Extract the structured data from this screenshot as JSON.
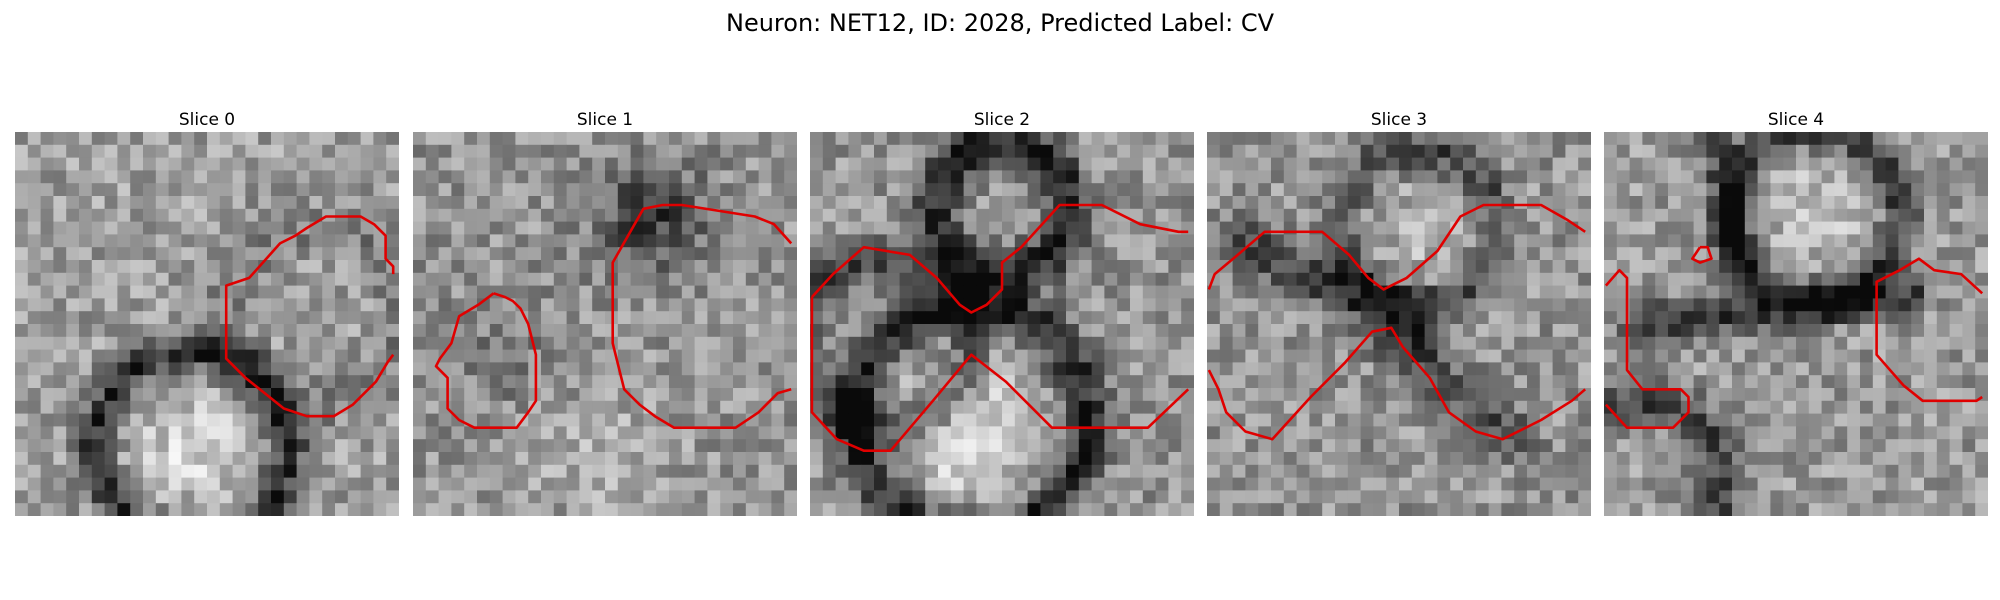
{
  "figure": {
    "title": "Neuron: NET12, ID: 2028, Predicted Label: CV"
  },
  "overlay_color": "#e00000",
  "slices": [
    {
      "title": "Slice 0",
      "contours": [
        [
          [
            0.985,
            0.37
          ],
          [
            0.985,
            0.35
          ],
          [
            0.965,
            0.33
          ],
          [
            0.965,
            0.27
          ],
          [
            0.935,
            0.24
          ],
          [
            0.9,
            0.22
          ],
          [
            0.86,
            0.22
          ],
          [
            0.81,
            0.22
          ],
          [
            0.76,
            0.25
          ],
          [
            0.73,
            0.27
          ],
          [
            0.69,
            0.29
          ],
          [
            0.61,
            0.38
          ],
          [
            0.55,
            0.4
          ],
          [
            0.55,
            0.59
          ],
          [
            0.6,
            0.64
          ],
          [
            0.65,
            0.68
          ],
          [
            0.7,
            0.72
          ],
          [
            0.76,
            0.74
          ],
          [
            0.83,
            0.74
          ],
          [
            0.88,
            0.71
          ],
          [
            0.94,
            0.65
          ],
          [
            0.97,
            0.6
          ],
          [
            0.985,
            0.58
          ]
        ]
      ]
    },
    {
      "title": "Slice 1",
      "contours": [
        [
          [
            0.21,
            0.42
          ],
          [
            0.17,
            0.45
          ],
          [
            0.12,
            0.48
          ],
          [
            0.1,
            0.55
          ],
          [
            0.07,
            0.59
          ],
          [
            0.06,
            0.61
          ],
          [
            0.09,
            0.64
          ],
          [
            0.09,
            0.72
          ],
          [
            0.12,
            0.75
          ],
          [
            0.16,
            0.77
          ],
          [
            0.22,
            0.77
          ],
          [
            0.27,
            0.77
          ],
          [
            0.3,
            0.73
          ],
          [
            0.32,
            0.7
          ],
          [
            0.32,
            0.58
          ],
          [
            0.3,
            0.5
          ],
          [
            0.28,
            0.46
          ],
          [
            0.26,
            0.44
          ],
          [
            0.24,
            0.43
          ],
          [
            0.21,
            0.42
          ]
        ],
        [
          [
            0.985,
            0.29
          ],
          [
            0.94,
            0.24
          ],
          [
            0.89,
            0.22
          ],
          [
            0.7,
            0.19
          ],
          [
            0.65,
            0.19
          ],
          [
            0.6,
            0.2
          ],
          [
            0.52,
            0.34
          ],
          [
            0.52,
            0.55
          ],
          [
            0.55,
            0.67
          ],
          [
            0.59,
            0.71
          ],
          [
            0.63,
            0.74
          ],
          [
            0.68,
            0.77
          ],
          [
            0.75,
            0.77
          ],
          [
            0.84,
            0.77
          ],
          [
            0.9,
            0.73
          ],
          [
            0.95,
            0.68
          ],
          [
            0.985,
            0.67
          ]
        ]
      ]
    },
    {
      "title": "Slice 2",
      "contours": [
        [
          [
            0.005,
            0.43
          ],
          [
            0.06,
            0.37
          ],
          [
            0.14,
            0.3
          ],
          [
            0.26,
            0.32
          ],
          [
            0.33,
            0.38
          ],
          [
            0.39,
            0.45
          ],
          [
            0.42,
            0.47
          ],
          [
            0.46,
            0.45
          ],
          [
            0.5,
            0.41
          ],
          [
            0.5,
            0.34
          ],
          [
            0.55,
            0.3
          ],
          [
            0.65,
            0.19
          ],
          [
            0.76,
            0.19
          ],
          [
            0.86,
            0.24
          ],
          [
            0.96,
            0.26
          ],
          [
            0.985,
            0.26
          ]
        ],
        [
          [
            0.005,
            0.43
          ],
          [
            0.005,
            0.73
          ],
          [
            0.07,
            0.8
          ],
          [
            0.14,
            0.83
          ],
          [
            0.21,
            0.83
          ],
          [
            0.32,
            0.7
          ],
          [
            0.42,
            0.58
          ],
          [
            0.51,
            0.65
          ],
          [
            0.63,
            0.77
          ],
          [
            0.74,
            0.77
          ],
          [
            0.88,
            0.77
          ],
          [
            0.985,
            0.67
          ]
        ]
      ]
    },
    {
      "title": "Slice 3",
      "contours": [
        [
          [
            0.005,
            0.41
          ],
          [
            0.02,
            0.37
          ],
          [
            0.08,
            0.32
          ],
          [
            0.15,
            0.26
          ],
          [
            0.23,
            0.26
          ],
          [
            0.3,
            0.26
          ],
          [
            0.37,
            0.32
          ],
          [
            0.42,
            0.38
          ],
          [
            0.46,
            0.41
          ],
          [
            0.52,
            0.38
          ],
          [
            0.6,
            0.31
          ],
          [
            0.66,
            0.22
          ],
          [
            0.72,
            0.19
          ],
          [
            0.87,
            0.19
          ],
          [
            0.94,
            0.23
          ],
          [
            0.985,
            0.26
          ]
        ],
        [
          [
            0.005,
            0.62
          ],
          [
            0.03,
            0.67
          ],
          [
            0.05,
            0.73
          ],
          [
            0.1,
            0.78
          ],
          [
            0.17,
            0.8
          ],
          [
            0.27,
            0.69
          ],
          [
            0.36,
            0.6
          ],
          [
            0.43,
            0.52
          ],
          [
            0.48,
            0.51
          ],
          [
            0.51,
            0.56
          ],
          [
            0.58,
            0.64
          ],
          [
            0.63,
            0.73
          ],
          [
            0.7,
            0.78
          ],
          [
            0.77,
            0.8
          ],
          [
            0.87,
            0.75
          ],
          [
            0.95,
            0.7
          ],
          [
            0.985,
            0.67
          ]
        ]
      ]
    },
    {
      "title": "Slice 4",
      "contours": [
        [
          [
            0.25,
            0.3
          ],
          [
            0.23,
            0.33
          ],
          [
            0.25,
            0.34
          ],
          [
            0.28,
            0.33
          ],
          [
            0.27,
            0.3
          ],
          [
            0.25,
            0.3
          ]
        ],
        [
          [
            0.005,
            0.4
          ],
          [
            0.04,
            0.36
          ],
          [
            0.06,
            0.38
          ],
          [
            0.06,
            0.62
          ],
          [
            0.1,
            0.67
          ],
          [
            0.2,
            0.67
          ],
          [
            0.22,
            0.69
          ],
          [
            0.22,
            0.73
          ],
          [
            0.18,
            0.77
          ],
          [
            0.13,
            0.77
          ],
          [
            0.06,
            0.77
          ],
          [
            0.005,
            0.71
          ]
        ],
        [
          [
            0.985,
            0.42
          ],
          [
            0.93,
            0.37
          ],
          [
            0.86,
            0.36
          ],
          [
            0.82,
            0.33
          ],
          [
            0.77,
            0.36
          ],
          [
            0.71,
            0.39
          ],
          [
            0.71,
            0.58
          ],
          [
            0.78,
            0.66
          ],
          [
            0.83,
            0.7
          ],
          [
            0.9,
            0.7
          ],
          [
            0.97,
            0.7
          ],
          [
            0.985,
            0.69
          ]
        ]
      ]
    }
  ]
}
